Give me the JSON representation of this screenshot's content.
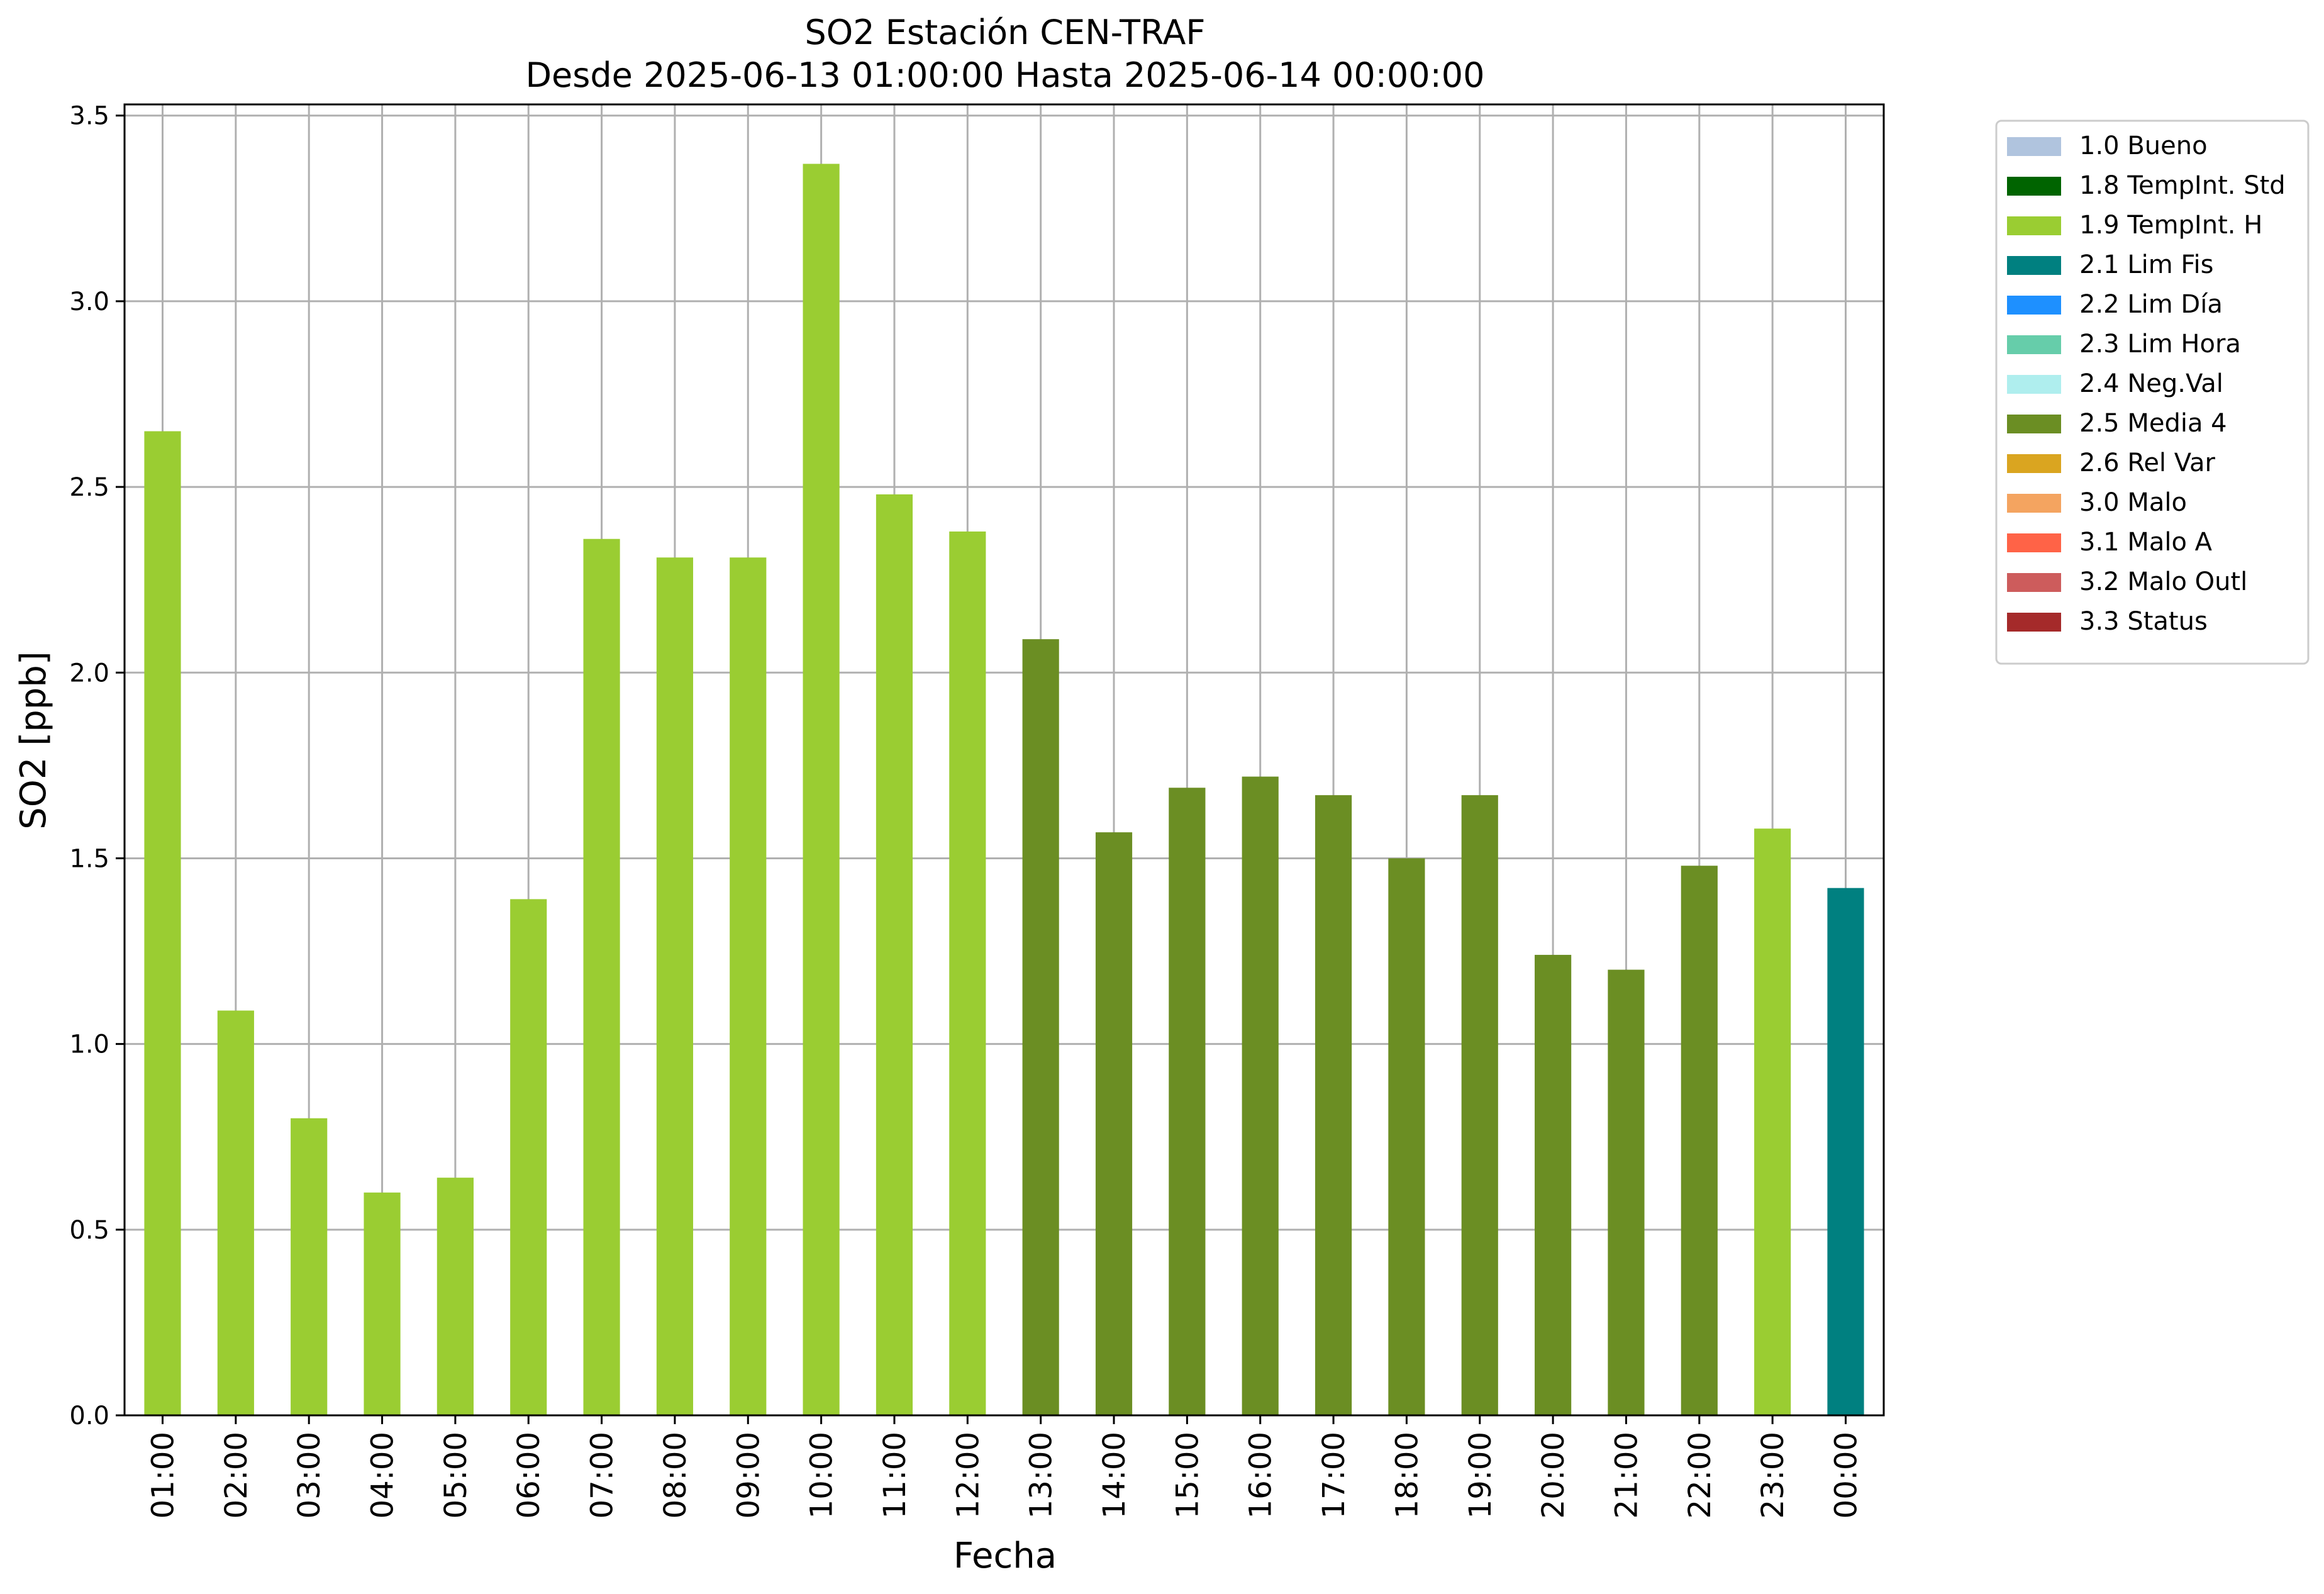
{
  "chart_data": {
    "type": "bar",
    "title": "SO2 Estación CEN-TRAF",
    "subtitle": "Desde 2025-06-13 01:00:00 Hasta 2025-06-14 00:00:00",
    "xlabel": "Fecha",
    "ylabel": "SO2 [ppb]",
    "ylim": [
      0,
      3.53
    ],
    "yticks": [
      0.0,
      0.5,
      1.0,
      1.5,
      2.0,
      2.5,
      3.0,
      3.5
    ],
    "ytick_labels": [
      "0.0",
      "0.5",
      "1.0",
      "1.5",
      "2.0",
      "2.5",
      "3.0",
      "3.5"
    ],
    "grid": true,
    "legend_position": "outside-right-top",
    "categories": [
      "01:00",
      "02:00",
      "03:00",
      "04:00",
      "05:00",
      "06:00",
      "07:00",
      "08:00",
      "09:00",
      "10:00",
      "11:00",
      "12:00",
      "13:00",
      "14:00",
      "15:00",
      "16:00",
      "17:00",
      "18:00",
      "19:00",
      "20:00",
      "21:00",
      "22:00",
      "23:00",
      "00:00"
    ],
    "values": [
      2.65,
      1.09,
      0.8,
      0.6,
      0.64,
      1.39,
      2.36,
      2.31,
      2.31,
      3.37,
      2.48,
      2.38,
      2.09,
      1.57,
      1.69,
      1.72,
      1.67,
      1.5,
      1.67,
      1.24,
      1.2,
      1.48,
      1.58,
      1.42
    ],
    "flags": [
      "1.9 TempInt. H",
      "1.9 TempInt. H",
      "1.9 TempInt. H",
      "1.9 TempInt. H",
      "1.9 TempInt. H",
      "1.9 TempInt. H",
      "1.9 TempInt. H",
      "1.9 TempInt. H",
      "1.9 TempInt. H",
      "1.9 TempInt. H",
      "1.9 TempInt. H",
      "1.9 TempInt. H",
      "2.5 Media 4",
      "2.5 Media 4",
      "2.5 Media 4",
      "2.5 Media 4",
      "2.5 Media 4",
      "2.5 Media 4",
      "2.5 Media 4",
      "2.5 Media 4",
      "2.5 Media 4",
      "2.5 Media 4",
      "1.9 TempInt. H",
      "2.1 Lim Fis"
    ],
    "legend": [
      {
        "label": "1.0 Bueno",
        "color": "#b0c4de"
      },
      {
        "label": "1.8 TempInt. Std",
        "color": "#006400"
      },
      {
        "label": "1.9 TempInt. H",
        "color": "#9acd32"
      },
      {
        "label": "2.1 Lim Fis",
        "color": "#008080"
      },
      {
        "label": "2.2 Lim Día",
        "color": "#1e90ff"
      },
      {
        "label": "2.3 Lim Hora",
        "color": "#66cdaa"
      },
      {
        "label": "2.4 Neg.Val",
        "color": "#afeeee"
      },
      {
        "label": "2.5 Media 4",
        "color": "#6b8e23"
      },
      {
        "label": "2.6 Rel Var",
        "color": "#daa520"
      },
      {
        "label": "3.0 Malo",
        "color": "#f4a460"
      },
      {
        "label": "3.1 Malo A",
        "color": "#ff6347"
      },
      {
        "label": "3.2 Malo Outl",
        "color": "#cd5c5c"
      },
      {
        "label": "3.3 Status",
        "color": "#a52a2a"
      }
    ]
  }
}
